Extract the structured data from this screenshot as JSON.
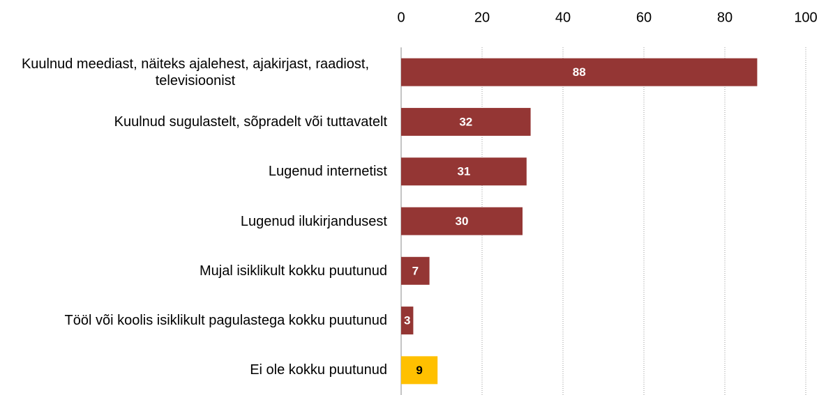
{
  "chart_data": {
    "type": "barh",
    "categories": [
      "Kuulnud meediast, näiteks  ajalehest, ajakirjast, raadiost, televisioonist",
      "Kuulnud sugulastelt, sõpradelt või tuttavatelt",
      "Lugenud internetist",
      "Lugenud ilukirjandusest",
      "Mujal isiklikult kokku puutunud",
      "Tööl või koolis isiklikult pagulastega kokku puutunud",
      "Ei ole kokku puutunud"
    ],
    "values": [
      88,
      32,
      31,
      30,
      7,
      3,
      9
    ],
    "colors": [
      "#943634",
      "#943634",
      "#943634",
      "#943634",
      "#943634",
      "#943634",
      "#ffc000"
    ],
    "xlim": [
      0,
      100
    ],
    "xticks": [
      0,
      20,
      40,
      60,
      80,
      100
    ],
    "grid": true
  }
}
